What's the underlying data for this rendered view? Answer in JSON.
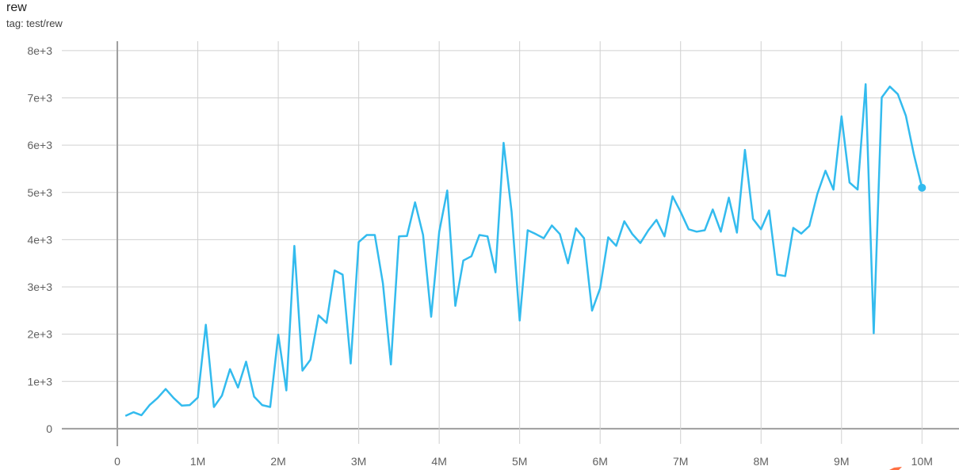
{
  "card": {
    "title": "rew",
    "tag": "tag: test/rew"
  },
  "chart_data": {
    "type": "line",
    "title": "rew",
    "xlabel": "",
    "ylabel": "",
    "xlim": [
      -0.69,
      10.46
    ],
    "ylim": [
      -320,
      8200
    ],
    "grid": true,
    "x_unit_label": "M",
    "xticks": [
      "0",
      "1M",
      "2M",
      "3M",
      "4M",
      "5M",
      "6M",
      "7M",
      "8M",
      "9M",
      "10M"
    ],
    "xtick_values": [
      0,
      1,
      2,
      3,
      4,
      5,
      6,
      7,
      8,
      9,
      10
    ],
    "yticks": [
      "0",
      "1e+3",
      "2e+3",
      "3e+3",
      "4e+3",
      "5e+3",
      "6e+3",
      "7e+3",
      "8e+3"
    ],
    "ytick_values": [
      0,
      1000,
      2000,
      3000,
      4000,
      5000,
      6000,
      7000,
      8000
    ],
    "line_color": "#33bbee",
    "series": [
      {
        "x": [
          0.1,
          0.2,
          0.3,
          0.4,
          0.5,
          0.6,
          0.7,
          0.8,
          0.9,
          1.0,
          1.1,
          1.2,
          1.3,
          1.4,
          1.5,
          1.6,
          1.7,
          1.8,
          1.9,
          2.0,
          2.1,
          2.2,
          2.3,
          2.4,
          2.5,
          2.6,
          2.7,
          2.8,
          2.9,
          3.0,
          3.1,
          3.2,
          3.3,
          3.4,
          3.5,
          3.6,
          3.7,
          3.8,
          3.9,
          4.0,
          4.1,
          4.2,
          4.3,
          4.4,
          4.5,
          4.6,
          4.7,
          4.8,
          4.9,
          5.0,
          5.1,
          5.2,
          5.3,
          5.4,
          5.5,
          5.6,
          5.7,
          5.8,
          5.9,
          6.0,
          6.1,
          6.2,
          6.3,
          6.4,
          6.5,
          6.6,
          6.7,
          6.8,
          6.9,
          7.0,
          7.1,
          7.2,
          7.3,
          7.4,
          7.5,
          7.6,
          7.7,
          7.8,
          7.9,
          8.0,
          8.1,
          8.2,
          8.3,
          8.4,
          8.5,
          8.6,
          8.7,
          8.8,
          8.9,
          9.0,
          9.1,
          9.2,
          9.3,
          9.4,
          9.5,
          9.6,
          9.7,
          9.8,
          9.9,
          10.0
        ],
        "y": [
          270,
          350,
          285,
          500,
          650,
          840,
          650,
          490,
          500,
          660,
          2200,
          460,
          700,
          1260,
          870,
          1420,
          680,
          500,
          460,
          1990,
          810,
          3870,
          1230,
          1460,
          2400,
          2240,
          3350,
          3260,
          1380,
          3950,
          4100,
          4100,
          3080,
          1360,
          4070,
          4080,
          4790,
          4100,
          2370,
          4170,
          5040,
          2600,
          3560,
          3650,
          4100,
          4070,
          3310,
          6050,
          4590,
          2290,
          4200,
          4120,
          4030,
          4300,
          4120,
          3500,
          4240,
          4030,
          2500,
          2970,
          4050,
          3870,
          4390,
          4120,
          3930,
          4200,
          4420,
          4070,
          4920,
          4590,
          4220,
          4170,
          4200,
          4640,
          4170,
          4890,
          4150,
          5900,
          4440,
          4220,
          4620,
          3260,
          3230,
          4250,
          4130,
          4290,
          4970,
          5460,
          5060,
          6610,
          5210,
          5060,
          7290,
          2020,
          7010,
          7240,
          7080,
          6620,
          5800,
          5100
        ]
      }
    ]
  }
}
